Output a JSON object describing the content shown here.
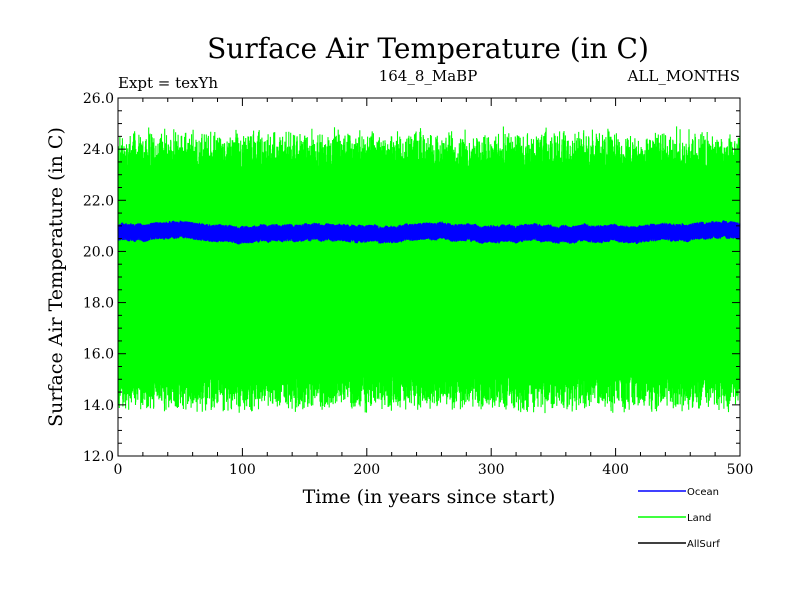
{
  "chart_data": {
    "type": "line",
    "title": "Surface Air Temperature (in C)",
    "subtitle_left": "Expt = texYh",
    "subtitle_center": "164_8_MaBP",
    "subtitle_right": "ALL_MONTHS",
    "xlabel": "Time (in years since start)",
    "ylabel": "Surface Air Temperature (in C)",
    "xlim": [
      0,
      500
    ],
    "ylim": [
      12.0,
      26.0
    ],
    "xticks": [
      0,
      100,
      200,
      300,
      400,
      500
    ],
    "yticks": [
      "12.0",
      "14.0",
      "16.0",
      "18.0",
      "20.0",
      "22.0",
      "24.0",
      "26.0"
    ],
    "legend_placement": "bottom-right",
    "series": [
      {
        "name": "Ocean",
        "color": "#0000ff",
        "mean": 20.75,
        "min": 20.1,
        "max": 21.35,
        "description_values": {
          "start_year": 0,
          "end_year": 500
        }
      },
      {
        "name": "Land",
        "color": "#00ff00",
        "min": 13.6,
        "max": 24.9,
        "description_values": {
          "start_year": 0,
          "end_year": 500
        }
      },
      {
        "name": "AllSurf",
        "color": "#000000"
      }
    ]
  }
}
